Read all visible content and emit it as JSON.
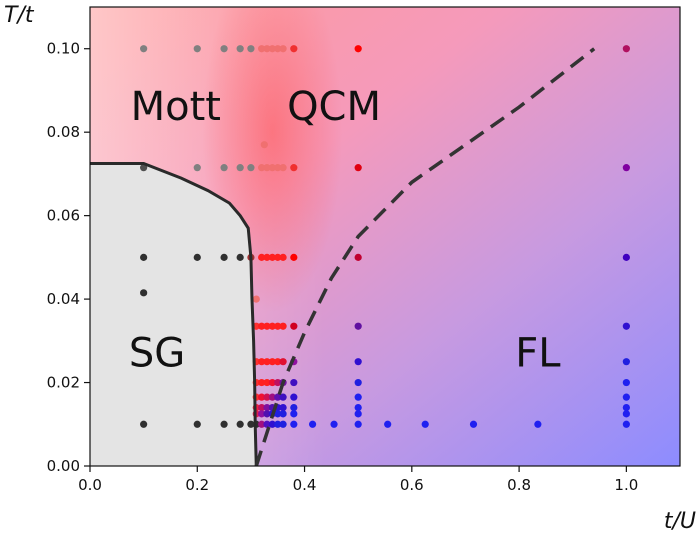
{
  "chart_data": {
    "type": "scatter",
    "title": "",
    "xlabel": "t/U",
    "ylabel": "T/t",
    "xlim": [
      0.0,
      1.1
    ],
    "ylim": [
      0.0,
      0.11
    ],
    "xticks": [
      0.0,
      0.2,
      0.4,
      0.6,
      0.8,
      1.0
    ],
    "xtick_labels": [
      "0.0",
      "0.2",
      "0.4",
      "0.6",
      "0.8",
      "1.0"
    ],
    "yticks": [
      0.0,
      0.02,
      0.04,
      0.06,
      0.08,
      0.1
    ],
    "ytick_labels": [
      "0.00",
      "0.02",
      "0.04",
      "0.06",
      "0.08",
      "0.10"
    ],
    "grid": false,
    "regions": [
      {
        "name": "Mott",
        "x": 0.16,
        "y": 0.086
      },
      {
        "name": "QCM",
        "x": 0.455,
        "y": 0.086
      },
      {
        "name": "SG",
        "x": 0.125,
        "y": 0.027
      },
      {
        "name": "FL",
        "x": 0.835,
        "y": 0.027
      }
    ],
    "sg_boundary": [
      [
        0.0,
        0.0725
      ],
      [
        0.1,
        0.0725
      ],
      [
        0.17,
        0.069
      ],
      [
        0.22,
        0.066
      ],
      [
        0.26,
        0.063
      ],
      [
        0.28,
        0.06
      ],
      [
        0.295,
        0.057
      ],
      [
        0.3,
        0.05
      ],
      [
        0.302,
        0.04
      ],
      [
        0.305,
        0.03
      ],
      [
        0.307,
        0.02
      ],
      [
        0.308,
        0.01
      ],
      [
        0.31,
        0.0
      ]
    ],
    "crossover_line": [
      [
        0.31,
        0.0
      ],
      [
        0.33,
        0.008
      ],
      [
        0.36,
        0.02
      ],
      [
        0.4,
        0.032
      ],
      [
        0.45,
        0.045
      ],
      [
        0.5,
        0.055
      ],
      [
        0.6,
        0.068
      ],
      [
        0.7,
        0.077
      ],
      [
        0.8,
        0.086
      ],
      [
        0.94,
        0.1
      ]
    ],
    "points": [
      {
        "x": 0.1,
        "y": 0.1,
        "color": "#808080"
      },
      {
        "x": 0.2,
        "y": 0.1,
        "color": "#808080"
      },
      {
        "x": 0.25,
        "y": 0.1,
        "color": "#808080"
      },
      {
        "x": 0.28,
        "y": 0.1,
        "color": "#808080"
      },
      {
        "x": 0.3,
        "y": 0.1,
        "color": "#808080"
      },
      {
        "x": 0.32,
        "y": 0.1,
        "color": "#f07070"
      },
      {
        "x": 0.33,
        "y": 0.1,
        "color": "#f07070"
      },
      {
        "x": 0.34,
        "y": 0.1,
        "color": "#f07070"
      },
      {
        "x": 0.35,
        "y": 0.1,
        "color": "#f07070"
      },
      {
        "x": 0.36,
        "y": 0.1,
        "color": "#f07070"
      },
      {
        "x": 0.38,
        "y": 0.1,
        "color": "#f03030"
      },
      {
        "x": 0.5,
        "y": 0.1,
        "color": "#ff0000"
      },
      {
        "x": 1.0,
        "y": 0.1,
        "color": "#b01060"
      },
      {
        "x": 0.325,
        "y": 0.077,
        "color": "#f07070"
      },
      {
        "x": 0.1,
        "y": 0.0715,
        "color": "#505050"
      },
      {
        "x": 0.2,
        "y": 0.0715,
        "color": "#808080"
      },
      {
        "x": 0.25,
        "y": 0.0715,
        "color": "#808080"
      },
      {
        "x": 0.28,
        "y": 0.0715,
        "color": "#808080"
      },
      {
        "x": 0.3,
        "y": 0.0715,
        "color": "#808080"
      },
      {
        "x": 0.32,
        "y": 0.0715,
        "color": "#f07070"
      },
      {
        "x": 0.33,
        "y": 0.0715,
        "color": "#f07070"
      },
      {
        "x": 0.34,
        "y": 0.0715,
        "color": "#f07070"
      },
      {
        "x": 0.35,
        "y": 0.0715,
        "color": "#f07070"
      },
      {
        "x": 0.36,
        "y": 0.0715,
        "color": "#f07070"
      },
      {
        "x": 0.38,
        "y": 0.0715,
        "color": "#f03030"
      },
      {
        "x": 0.5,
        "y": 0.0715,
        "color": "#e00010"
      },
      {
        "x": 1.0,
        "y": 0.0715,
        "color": "#8000a0"
      },
      {
        "x": 0.1,
        "y": 0.05,
        "color": "#303030"
      },
      {
        "x": 0.2,
        "y": 0.05,
        "color": "#303030"
      },
      {
        "x": 0.25,
        "y": 0.05,
        "color": "#303030"
      },
      {
        "x": 0.28,
        "y": 0.05,
        "color": "#303030"
      },
      {
        "x": 0.3,
        "y": 0.05,
        "color": "#a03030"
      },
      {
        "x": 0.32,
        "y": 0.05,
        "color": "#ff2020"
      },
      {
        "x": 0.33,
        "y": 0.05,
        "color": "#ff2020"
      },
      {
        "x": 0.34,
        "y": 0.05,
        "color": "#ff2020"
      },
      {
        "x": 0.35,
        "y": 0.05,
        "color": "#ff2020"
      },
      {
        "x": 0.36,
        "y": 0.05,
        "color": "#ff2020"
      },
      {
        "x": 0.38,
        "y": 0.05,
        "color": "#ff0000"
      },
      {
        "x": 0.5,
        "y": 0.05,
        "color": "#c00030"
      },
      {
        "x": 1.0,
        "y": 0.05,
        "color": "#4000c0"
      },
      {
        "x": 0.1,
        "y": 0.0415,
        "color": "#303030"
      },
      {
        "x": 0.31,
        "y": 0.04,
        "color": "#f07070"
      },
      {
        "x": 0.31,
        "y": 0.0335,
        "color": "#ff3030"
      },
      {
        "x": 0.32,
        "y": 0.0335,
        "color": "#ff2020"
      },
      {
        "x": 0.33,
        "y": 0.0335,
        "color": "#ff2020"
      },
      {
        "x": 0.34,
        "y": 0.0335,
        "color": "#ff2020"
      },
      {
        "x": 0.35,
        "y": 0.0335,
        "color": "#ff2020"
      },
      {
        "x": 0.36,
        "y": 0.0335,
        "color": "#ff2020"
      },
      {
        "x": 0.38,
        "y": 0.0335,
        "color": "#d00020"
      },
      {
        "x": 0.5,
        "y": 0.0335,
        "color": "#6010a0"
      },
      {
        "x": 1.0,
        "y": 0.0335,
        "color": "#3010d0"
      },
      {
        "x": 0.31,
        "y": 0.025,
        "color": "#ff3030"
      },
      {
        "x": 0.32,
        "y": 0.025,
        "color": "#ff2020"
      },
      {
        "x": 0.33,
        "y": 0.025,
        "color": "#ff2020"
      },
      {
        "x": 0.34,
        "y": 0.025,
        "color": "#ff2020"
      },
      {
        "x": 0.35,
        "y": 0.025,
        "color": "#ff2020"
      },
      {
        "x": 0.36,
        "y": 0.025,
        "color": "#e01030"
      },
      {
        "x": 0.38,
        "y": 0.025,
        "color": "#9010a0"
      },
      {
        "x": 0.5,
        "y": 0.025,
        "color": "#3010d0"
      },
      {
        "x": 1.0,
        "y": 0.025,
        "color": "#2020e0"
      },
      {
        "x": 0.31,
        "y": 0.02,
        "color": "#ff3030"
      },
      {
        "x": 0.32,
        "y": 0.02,
        "color": "#ff2020"
      },
      {
        "x": 0.33,
        "y": 0.02,
        "color": "#ff2020"
      },
      {
        "x": 0.34,
        "y": 0.02,
        "color": "#f01030"
      },
      {
        "x": 0.35,
        "y": 0.02,
        "color": "#c01060"
      },
      {
        "x": 0.36,
        "y": 0.02,
        "color": "#7010a0"
      },
      {
        "x": 0.38,
        "y": 0.02,
        "color": "#4010c0"
      },
      {
        "x": 0.5,
        "y": 0.02,
        "color": "#2020e0"
      },
      {
        "x": 1.0,
        "y": 0.02,
        "color": "#2020f0"
      },
      {
        "x": 0.31,
        "y": 0.0165,
        "color": "#ff3030"
      },
      {
        "x": 0.32,
        "y": 0.0165,
        "color": "#f01030"
      },
      {
        "x": 0.33,
        "y": 0.0165,
        "color": "#d01050"
      },
      {
        "x": 0.34,
        "y": 0.0165,
        "color": "#a01080"
      },
      {
        "x": 0.35,
        "y": 0.0165,
        "color": "#6010b0"
      },
      {
        "x": 0.36,
        "y": 0.0165,
        "color": "#4010c0"
      },
      {
        "x": 0.38,
        "y": 0.0165,
        "color": "#3010d0"
      },
      {
        "x": 0.5,
        "y": 0.0165,
        "color": "#2020f0"
      },
      {
        "x": 1.0,
        "y": 0.0165,
        "color": "#2020f0"
      },
      {
        "x": 0.31,
        "y": 0.014,
        "color": "#f02040"
      },
      {
        "x": 0.32,
        "y": 0.014,
        "color": "#c01060"
      },
      {
        "x": 0.33,
        "y": 0.014,
        "color": "#8010a0"
      },
      {
        "x": 0.34,
        "y": 0.014,
        "color": "#5010b0"
      },
      {
        "x": 0.35,
        "y": 0.014,
        "color": "#3010d0"
      },
      {
        "x": 0.36,
        "y": 0.014,
        "color": "#3010d0"
      },
      {
        "x": 0.38,
        "y": 0.014,
        "color": "#2020e0"
      },
      {
        "x": 0.5,
        "y": 0.014,
        "color": "#2020f0"
      },
      {
        "x": 1.0,
        "y": 0.014,
        "color": "#2020f0"
      },
      {
        "x": 0.31,
        "y": 0.0125,
        "color": "#e02050"
      },
      {
        "x": 0.32,
        "y": 0.0125,
        "color": "#9010a0"
      },
      {
        "x": 0.33,
        "y": 0.0125,
        "color": "#5010b0"
      },
      {
        "x": 0.34,
        "y": 0.0125,
        "color": "#3010d0"
      },
      {
        "x": 0.35,
        "y": 0.0125,
        "color": "#2020e0"
      },
      {
        "x": 0.36,
        "y": 0.0125,
        "color": "#2020e0"
      },
      {
        "x": 0.38,
        "y": 0.0125,
        "color": "#2020f0"
      },
      {
        "x": 0.5,
        "y": 0.0125,
        "color": "#2020f0"
      },
      {
        "x": 1.0,
        "y": 0.0125,
        "color": "#2020f0"
      },
      {
        "x": 0.31,
        "y": 0.01,
        "color": "#303030"
      },
      {
        "x": 0.32,
        "y": 0.01,
        "color": "#a01080"
      },
      {
        "x": 0.33,
        "y": 0.01,
        "color": "#5010c0"
      },
      {
        "x": 0.34,
        "y": 0.01,
        "color": "#3010d0"
      },
      {
        "x": 0.35,
        "y": 0.01,
        "color": "#2020e0"
      },
      {
        "x": 0.36,
        "y": 0.01,
        "color": "#2020e0"
      },
      {
        "x": 0.38,
        "y": 0.01,
        "color": "#2020f0"
      },
      {
        "x": 0.415,
        "y": 0.01,
        "color": "#2020f0"
      },
      {
        "x": 0.455,
        "y": 0.01,
        "color": "#2020f0"
      },
      {
        "x": 0.5,
        "y": 0.01,
        "color": "#2020f0"
      },
      {
        "x": 0.555,
        "y": 0.01,
        "color": "#2020f0"
      },
      {
        "x": 0.625,
        "y": 0.01,
        "color": "#2020f0"
      },
      {
        "x": 0.715,
        "y": 0.01,
        "color": "#2020f0"
      },
      {
        "x": 0.835,
        "y": 0.01,
        "color": "#2020f0"
      },
      {
        "x": 1.0,
        "y": 0.01,
        "color": "#2020f0"
      },
      {
        "x": 0.1,
        "y": 0.01,
        "color": "#303030"
      },
      {
        "x": 0.2,
        "y": 0.01,
        "color": "#303030"
      },
      {
        "x": 0.25,
        "y": 0.01,
        "color": "#303030"
      },
      {
        "x": 0.28,
        "y": 0.01,
        "color": "#303030"
      },
      {
        "x": 0.3,
        "y": 0.01,
        "color": "#303030"
      }
    ]
  }
}
